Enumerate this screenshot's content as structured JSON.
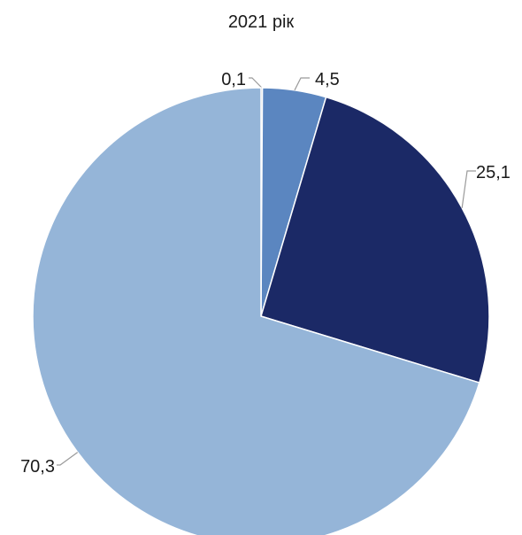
{
  "chart_data": {
    "type": "pie",
    "title": "2021 рік",
    "start_angle_deg": 0,
    "direction": "clockwise",
    "slices": [
      {
        "label": "0,1",
        "value": 0.1,
        "color": "#8c8c8c"
      },
      {
        "label": "4,5",
        "value": 4.5,
        "color": "#5b86c0"
      },
      {
        "label": "25,1",
        "value": 25.1,
        "color": "#1b2966"
      },
      {
        "label": "70,3",
        "value": 70.3,
        "color": "#95b5d8"
      }
    ]
  }
}
